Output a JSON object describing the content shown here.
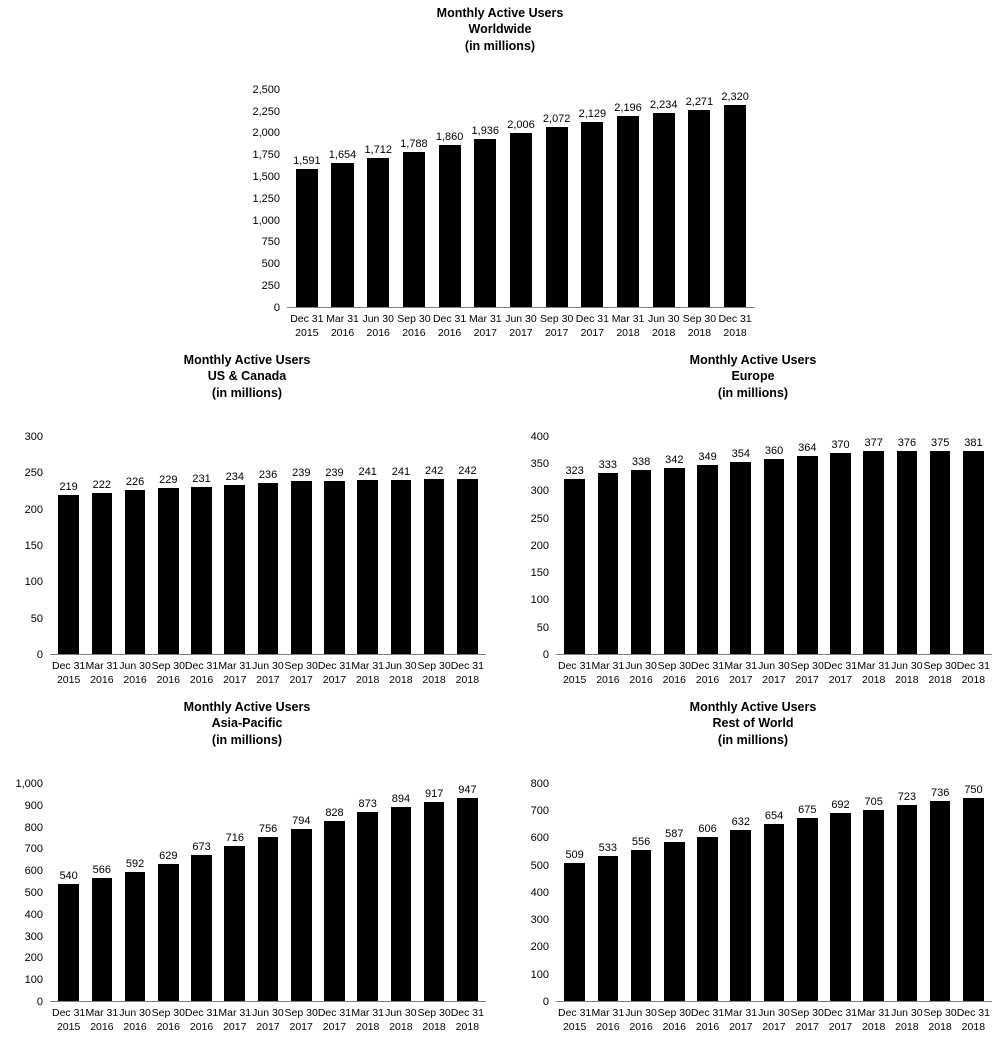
{
  "page": {
    "background_color": "#ffffff",
    "bar_color": "#000000",
    "axis_line_color": "#7f7f7f"
  },
  "chart_data": [
    {
      "type": "bar",
      "title_lines": [
        "Monthly Active Users",
        "Worldwide",
        "(in millions)"
      ],
      "categories": [
        [
          "Dec 31",
          "2015"
        ],
        [
          "Mar 31",
          "2016"
        ],
        [
          "Jun 30",
          "2016"
        ],
        [
          "Sep 30",
          "2016"
        ],
        [
          "Dec 31",
          "2016"
        ],
        [
          "Mar 31",
          "2017"
        ],
        [
          "Jun 30",
          "2017"
        ],
        [
          "Sep 30",
          "2017"
        ],
        [
          "Dec 31",
          "2017"
        ],
        [
          "Mar 31",
          "2018"
        ],
        [
          "Jun 30",
          "2018"
        ],
        [
          "Sep 30",
          "2018"
        ],
        [
          "Dec 31",
          "2018"
        ]
      ],
      "values": [
        1591,
        1654,
        1712,
        1788,
        1860,
        1936,
        2006,
        2072,
        2129,
        2196,
        2234,
        2271,
        2320
      ],
      "ylim": [
        0,
        2500
      ],
      "ytick_step": 250,
      "grid": false,
      "legend": "none",
      "bar_color": "#000000"
    },
    {
      "type": "bar",
      "title_lines": [
        "Monthly Active Users",
        "US & Canada",
        "(in millions)"
      ],
      "categories": [
        [
          "Dec 31",
          "2015"
        ],
        [
          "Mar 31",
          "2016"
        ],
        [
          "Jun 30",
          "2016"
        ],
        [
          "Sep 30",
          "2016"
        ],
        [
          "Dec 31",
          "2016"
        ],
        [
          "Mar 31",
          "2017"
        ],
        [
          "Jun 30",
          "2017"
        ],
        [
          "Sep 30",
          "2017"
        ],
        [
          "Dec 31",
          "2017"
        ],
        [
          "Mar 31",
          "2018"
        ],
        [
          "Jun 30",
          "2018"
        ],
        [
          "Sep 30",
          "2018"
        ],
        [
          "Dec 31",
          "2018"
        ]
      ],
      "values": [
        219,
        222,
        226,
        229,
        231,
        234,
        236,
        239,
        239,
        241,
        241,
        242,
        242
      ],
      "ylim": [
        0,
        300
      ],
      "ytick_step": 50,
      "grid": false,
      "legend": "none",
      "bar_color": "#000000"
    },
    {
      "type": "bar",
      "title_lines": [
        "Monthly Active Users",
        "Europe",
        "(in millions)"
      ],
      "categories": [
        [
          "Dec 31",
          "2015"
        ],
        [
          "Mar 31",
          "2016"
        ],
        [
          "Jun 30",
          "2016"
        ],
        [
          "Sep 30",
          "2016"
        ],
        [
          "Dec 31",
          "2016"
        ],
        [
          "Mar 31",
          "2017"
        ],
        [
          "Jun 30",
          "2017"
        ],
        [
          "Sep 30",
          "2017"
        ],
        [
          "Dec 31",
          "2017"
        ],
        [
          "Mar 31",
          "2018"
        ],
        [
          "Jun 30",
          "2018"
        ],
        [
          "Sep 30",
          "2018"
        ],
        [
          "Dec 31",
          "2018"
        ]
      ],
      "values": [
        323,
        333,
        338,
        342,
        349,
        354,
        360,
        364,
        370,
        377,
        376,
        375,
        381
      ],
      "ylim": [
        0,
        400
      ],
      "ytick_step": 50,
      "grid": false,
      "legend": "none",
      "bar_color": "#000000"
    },
    {
      "type": "bar",
      "title_lines": [
        "Monthly Active Users",
        "Asia-Pacific",
        "(in millions)"
      ],
      "categories": [
        [
          "Dec 31",
          "2015"
        ],
        [
          "Mar 31",
          "2016"
        ],
        [
          "Jun 30",
          "2016"
        ],
        [
          "Sep 30",
          "2016"
        ],
        [
          "Dec 31",
          "2016"
        ],
        [
          "Mar 31",
          "2017"
        ],
        [
          "Jun 30",
          "2017"
        ],
        [
          "Sep 30",
          "2017"
        ],
        [
          "Dec 31",
          "2017"
        ],
        [
          "Mar 31",
          "2018"
        ],
        [
          "Jun 30",
          "2018"
        ],
        [
          "Sep 30",
          "2018"
        ],
        [
          "Dec 31",
          "2018"
        ]
      ],
      "values": [
        540,
        566,
        592,
        629,
        673,
        716,
        756,
        794,
        828,
        873,
        894,
        917,
        947
      ],
      "ylim": [
        0,
        1000
      ],
      "ytick_step": 100,
      "grid": false,
      "legend": "none",
      "bar_color": "#000000"
    },
    {
      "type": "bar",
      "title_lines": [
        "Monthly Active Users",
        "Rest of World",
        "(in millions)"
      ],
      "categories": [
        [
          "Dec 31",
          "2015"
        ],
        [
          "Mar 31",
          "2016"
        ],
        [
          "Jun 30",
          "2016"
        ],
        [
          "Sep 30",
          "2016"
        ],
        [
          "Dec 31",
          "2016"
        ],
        [
          "Mar 31",
          "2017"
        ],
        [
          "Jun 30",
          "2017"
        ],
        [
          "Sep 30",
          "2017"
        ],
        [
          "Dec 31",
          "2017"
        ],
        [
          "Mar 31",
          "2018"
        ],
        [
          "Jun 30",
          "2018"
        ],
        [
          "Sep 30",
          "2018"
        ],
        [
          "Dec 31",
          "2018"
        ]
      ],
      "values": [
        509,
        533,
        556,
        587,
        606,
        632,
        654,
        675,
        692,
        705,
        723,
        736,
        750
      ],
      "ylim": [
        0,
        800
      ],
      "ytick_step": 100,
      "grid": false,
      "legend": "none",
      "bar_color": "#000000"
    }
  ]
}
